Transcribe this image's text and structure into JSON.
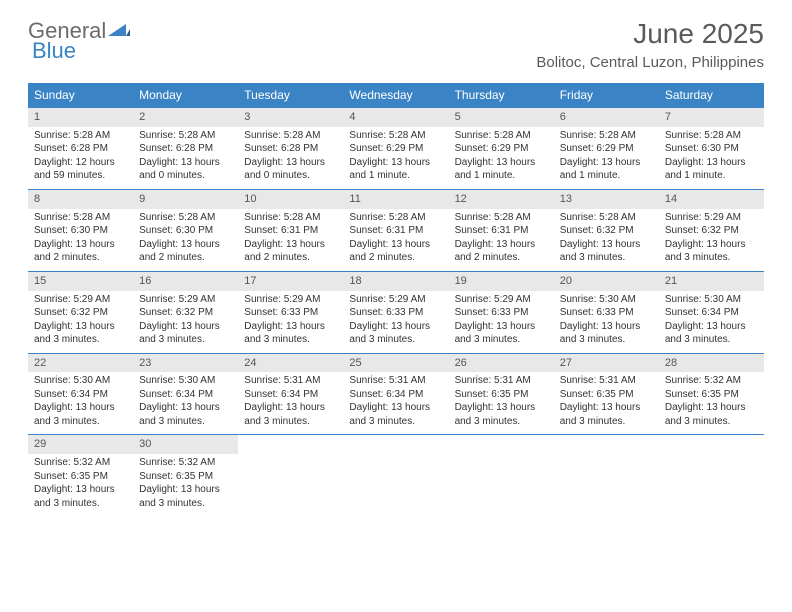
{
  "logo": {
    "text1": "General",
    "text2": "Blue"
  },
  "title": "June 2025",
  "location": "Bolitoc, Central Luzon, Philippines",
  "dow": [
    "Sunday",
    "Monday",
    "Tuesday",
    "Wednesday",
    "Thursday",
    "Friday",
    "Saturday"
  ],
  "colors": {
    "header_bg": "#3a84c6",
    "header_fg": "#ffffff",
    "daynum_bg": "#e8e8e8",
    "text": "#333333",
    "title": "#5a5a5a"
  },
  "weeks": [
    [
      {
        "n": "1",
        "sr": "Sunrise: 5:28 AM",
        "ss": "Sunset: 6:28 PM",
        "dl": "Daylight: 12 hours and 59 minutes."
      },
      {
        "n": "2",
        "sr": "Sunrise: 5:28 AM",
        "ss": "Sunset: 6:28 PM",
        "dl": "Daylight: 13 hours and 0 minutes."
      },
      {
        "n": "3",
        "sr": "Sunrise: 5:28 AM",
        "ss": "Sunset: 6:28 PM",
        "dl": "Daylight: 13 hours and 0 minutes."
      },
      {
        "n": "4",
        "sr": "Sunrise: 5:28 AM",
        "ss": "Sunset: 6:29 PM",
        "dl": "Daylight: 13 hours and 1 minute."
      },
      {
        "n": "5",
        "sr": "Sunrise: 5:28 AM",
        "ss": "Sunset: 6:29 PM",
        "dl": "Daylight: 13 hours and 1 minute."
      },
      {
        "n": "6",
        "sr": "Sunrise: 5:28 AM",
        "ss": "Sunset: 6:29 PM",
        "dl": "Daylight: 13 hours and 1 minute."
      },
      {
        "n": "7",
        "sr": "Sunrise: 5:28 AM",
        "ss": "Sunset: 6:30 PM",
        "dl": "Daylight: 13 hours and 1 minute."
      }
    ],
    [
      {
        "n": "8",
        "sr": "Sunrise: 5:28 AM",
        "ss": "Sunset: 6:30 PM",
        "dl": "Daylight: 13 hours and 2 minutes."
      },
      {
        "n": "9",
        "sr": "Sunrise: 5:28 AM",
        "ss": "Sunset: 6:30 PM",
        "dl": "Daylight: 13 hours and 2 minutes."
      },
      {
        "n": "10",
        "sr": "Sunrise: 5:28 AM",
        "ss": "Sunset: 6:31 PM",
        "dl": "Daylight: 13 hours and 2 minutes."
      },
      {
        "n": "11",
        "sr": "Sunrise: 5:28 AM",
        "ss": "Sunset: 6:31 PM",
        "dl": "Daylight: 13 hours and 2 minutes."
      },
      {
        "n": "12",
        "sr": "Sunrise: 5:28 AM",
        "ss": "Sunset: 6:31 PM",
        "dl": "Daylight: 13 hours and 2 minutes."
      },
      {
        "n": "13",
        "sr": "Sunrise: 5:28 AM",
        "ss": "Sunset: 6:32 PM",
        "dl": "Daylight: 13 hours and 3 minutes."
      },
      {
        "n": "14",
        "sr": "Sunrise: 5:29 AM",
        "ss": "Sunset: 6:32 PM",
        "dl": "Daylight: 13 hours and 3 minutes."
      }
    ],
    [
      {
        "n": "15",
        "sr": "Sunrise: 5:29 AM",
        "ss": "Sunset: 6:32 PM",
        "dl": "Daylight: 13 hours and 3 minutes."
      },
      {
        "n": "16",
        "sr": "Sunrise: 5:29 AM",
        "ss": "Sunset: 6:32 PM",
        "dl": "Daylight: 13 hours and 3 minutes."
      },
      {
        "n": "17",
        "sr": "Sunrise: 5:29 AM",
        "ss": "Sunset: 6:33 PM",
        "dl": "Daylight: 13 hours and 3 minutes."
      },
      {
        "n": "18",
        "sr": "Sunrise: 5:29 AM",
        "ss": "Sunset: 6:33 PM",
        "dl": "Daylight: 13 hours and 3 minutes."
      },
      {
        "n": "19",
        "sr": "Sunrise: 5:29 AM",
        "ss": "Sunset: 6:33 PM",
        "dl": "Daylight: 13 hours and 3 minutes."
      },
      {
        "n": "20",
        "sr": "Sunrise: 5:30 AM",
        "ss": "Sunset: 6:33 PM",
        "dl": "Daylight: 13 hours and 3 minutes."
      },
      {
        "n": "21",
        "sr": "Sunrise: 5:30 AM",
        "ss": "Sunset: 6:34 PM",
        "dl": "Daylight: 13 hours and 3 minutes."
      }
    ],
    [
      {
        "n": "22",
        "sr": "Sunrise: 5:30 AM",
        "ss": "Sunset: 6:34 PM",
        "dl": "Daylight: 13 hours and 3 minutes."
      },
      {
        "n": "23",
        "sr": "Sunrise: 5:30 AM",
        "ss": "Sunset: 6:34 PM",
        "dl": "Daylight: 13 hours and 3 minutes."
      },
      {
        "n": "24",
        "sr": "Sunrise: 5:31 AM",
        "ss": "Sunset: 6:34 PM",
        "dl": "Daylight: 13 hours and 3 minutes."
      },
      {
        "n": "25",
        "sr": "Sunrise: 5:31 AM",
        "ss": "Sunset: 6:34 PM",
        "dl": "Daylight: 13 hours and 3 minutes."
      },
      {
        "n": "26",
        "sr": "Sunrise: 5:31 AM",
        "ss": "Sunset: 6:35 PM",
        "dl": "Daylight: 13 hours and 3 minutes."
      },
      {
        "n": "27",
        "sr": "Sunrise: 5:31 AM",
        "ss": "Sunset: 6:35 PM",
        "dl": "Daylight: 13 hours and 3 minutes."
      },
      {
        "n": "28",
        "sr": "Sunrise: 5:32 AM",
        "ss": "Sunset: 6:35 PM",
        "dl": "Daylight: 13 hours and 3 minutes."
      }
    ],
    [
      {
        "n": "29",
        "sr": "Sunrise: 5:32 AM",
        "ss": "Sunset: 6:35 PM",
        "dl": "Daylight: 13 hours and 3 minutes."
      },
      {
        "n": "30",
        "sr": "Sunrise: 5:32 AM",
        "ss": "Sunset: 6:35 PM",
        "dl": "Daylight: 13 hours and 3 minutes."
      },
      {
        "empty": true
      },
      {
        "empty": true
      },
      {
        "empty": true
      },
      {
        "empty": true
      },
      {
        "empty": true
      }
    ]
  ]
}
